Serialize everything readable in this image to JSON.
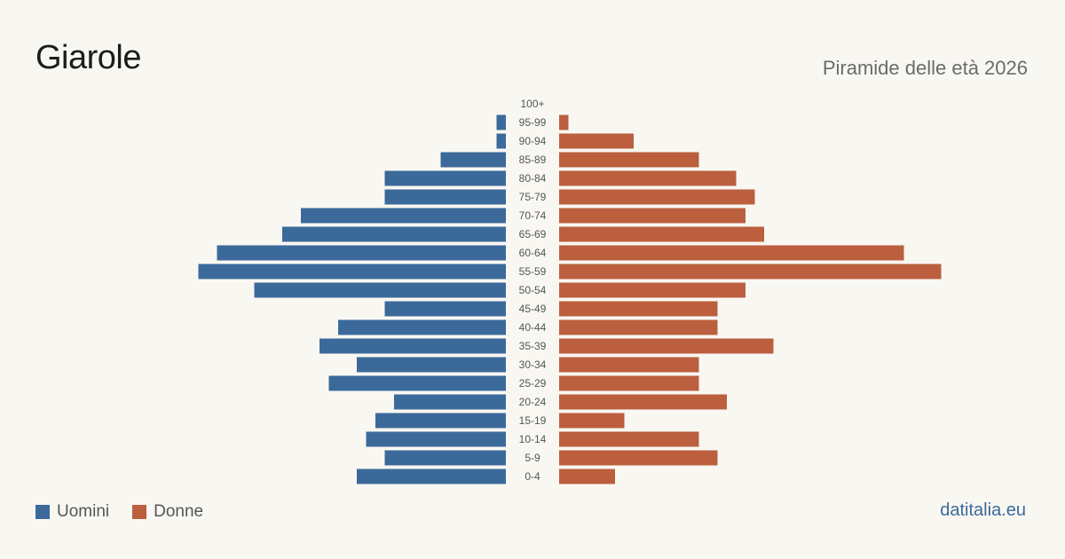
{
  "header": {
    "title": "Giarole",
    "subtitle": "Piramide delle età 2026"
  },
  "legend": {
    "men_label": "Uomini",
    "women_label": "Donne"
  },
  "footer": {
    "source": "datitalia.eu"
  },
  "colors": {
    "men": "#3b6a9a",
    "women": "#bb5f3e",
    "background": "#f9f7f2"
  },
  "chart_data": {
    "type": "bar",
    "orientation": "horizontal-pyramid",
    "title": "Piramide delle età 2026",
    "categories": [
      "100+",
      "95-99",
      "90-94",
      "85-89",
      "80-84",
      "75-79",
      "70-74",
      "65-69",
      "60-64",
      "55-59",
      "50-54",
      "45-49",
      "40-44",
      "35-39",
      "30-34",
      "25-29",
      "20-24",
      "15-19",
      "10-14",
      "5-9",
      "0-4"
    ],
    "series": [
      {
        "name": "Uomini",
        "side": "left",
        "values": [
          0,
          1,
          1,
          7,
          13,
          13,
          22,
          24,
          31,
          33,
          27,
          13,
          18,
          20,
          16,
          19,
          12,
          14,
          15,
          13,
          16
        ]
      },
      {
        "name": "Donne",
        "side": "right",
        "values": [
          0,
          1,
          8,
          15,
          19,
          21,
          20,
          22,
          37,
          41,
          20,
          17,
          17,
          23,
          15,
          15,
          18,
          7,
          15,
          17,
          6
        ]
      }
    ],
    "grid": false,
    "legend_position": "bottom-left"
  }
}
